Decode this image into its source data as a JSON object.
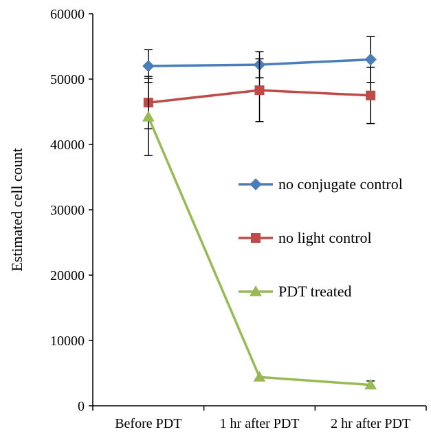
{
  "chart_data": {
    "type": "line",
    "title": "",
    "xlabel": "",
    "ylabel": "Estimated cell count",
    "ylim": [
      0,
      60000
    ],
    "yticks": [
      0,
      10000,
      20000,
      30000,
      40000,
      50000,
      60000
    ],
    "categories": [
      "Before PDT",
      "1 hr after PDT",
      "2 hr after PDT"
    ],
    "grid": false,
    "legend_position": "right-middle",
    "series": [
      {
        "name": "no conjugate control",
        "color": "#4a7ebb",
        "marker": "diamond",
        "values": [
          52000,
          52200,
          53000
        ],
        "errors": [
          2500,
          2000,
          3500
        ]
      },
      {
        "name": "no light control",
        "color": "#be4b48",
        "marker": "square",
        "values": [
          46400,
          48300,
          47500
        ],
        "errors": [
          4000,
          4800,
          4300
        ]
      },
      {
        "name": "PDT treated",
        "color": "#98b954",
        "marker": "triangle",
        "values": [
          44200,
          4400,
          3200
        ],
        "errors": [
          5900,
          0,
          600
        ]
      }
    ]
  }
}
